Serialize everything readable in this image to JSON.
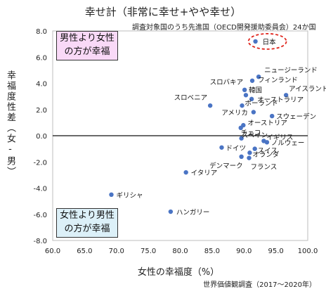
{
  "title": "幸せ計（非常に幸せ+やや幸せ）",
  "subtitle": "調査対象国のうち先進国（OECD開発援助委員会）24か国",
  "source": "世界価値観調査（2017〜2020年）",
  "annotations": {
    "box_top": "男性より女性の方が幸福",
    "box_top_line1": "男性より女性",
    "box_top_line2": "の方が幸福",
    "box_bottom_line1": "女性より男性",
    "box_bottom_line2": "の方が幸福",
    "box_top_color": "#f9d9f7",
    "box_bottom_color": "#dcf0f8",
    "highlight_color": "#e0241b"
  },
  "colors": {
    "point": "#4a74c4",
    "axis_zero": "#111111",
    "grid": "#d0d0d0"
  },
  "chart_data": {
    "type": "scatter",
    "title": "幸せ計（非常に幸せ+やや幸せ）",
    "xlabel": "女性の幸福度（%）",
    "ylabel": "幸福度性差（女-男）",
    "xlim": [
      60,
      100
    ],
    "ylim": [
      -8,
      8
    ],
    "xticks": [
      "60.0",
      "65.0",
      "70.0",
      "75.0",
      "80.0",
      "85.0",
      "90.0",
      "95.0",
      "100.0"
    ],
    "yticks": [
      "-8.0",
      "-6.0",
      "-4.0",
      "-2.0",
      "0.0",
      "2.0",
      "4.0",
      "6.0",
      "8.0"
    ],
    "grid": false,
    "points": [
      {
        "label": "日本",
        "x": 91.8,
        "y": 7.2,
        "highlight": true
      },
      {
        "label": "ニュージーランド",
        "x": 92.3,
        "y": 4.5
      },
      {
        "label": "フィンランド",
        "x": 91.3,
        "y": 4.2
      },
      {
        "label": "スロバキア",
        "x": 90.1,
        "y": 3.5
      },
      {
        "label": "アイスランド",
        "x": 96.6,
        "y": 3.1
      },
      {
        "label": "韓国",
        "x": 90.3,
        "y": 3.1
      },
      {
        "label": "オーストラリア",
        "x": 91.2,
        "y": 2.8
      },
      {
        "label": "スロベニア",
        "x": 84.7,
        "y": 2.3
      },
      {
        "label": "ポーランド",
        "x": 89.7,
        "y": 2.3
      },
      {
        "label": "アメリカ",
        "x": 91.5,
        "y": 1.8
      },
      {
        "label": "スウェーデン",
        "x": 94.4,
        "y": 1.5
      },
      {
        "label": "オーストリア",
        "x": 89.9,
        "y": 0.8
      },
      {
        "label": "チェコ",
        "x": 89.5,
        "y": 0.6
      },
      {
        "label": "スペイン",
        "x": 89.6,
        "y": -0.2
      },
      {
        "label": "イギリス",
        "x": 93.1,
        "y": -0.4
      },
      {
        "label": "ノルウェー",
        "x": 93.6,
        "y": -0.5
      },
      {
        "label": "ドイツ",
        "x": 86.5,
        "y": -0.9
      },
      {
        "label": "スイス",
        "x": 91.7,
        "y": -1.0
      },
      {
        "label": "オランダ",
        "x": 90.9,
        "y": -1.3
      },
      {
        "label": "デンマーク",
        "x": 89.6,
        "y": -1.6
      },
      {
        "label": "フランス",
        "x": 90.8,
        "y": -1.7
      },
      {
        "label": "イタリア",
        "x": 80.9,
        "y": -2.8
      },
      {
        "label": "ギリシャ",
        "x": 69.2,
        "y": -4.5
      },
      {
        "label": "ハンガリー",
        "x": 78.5,
        "y": -5.8
      }
    ]
  }
}
